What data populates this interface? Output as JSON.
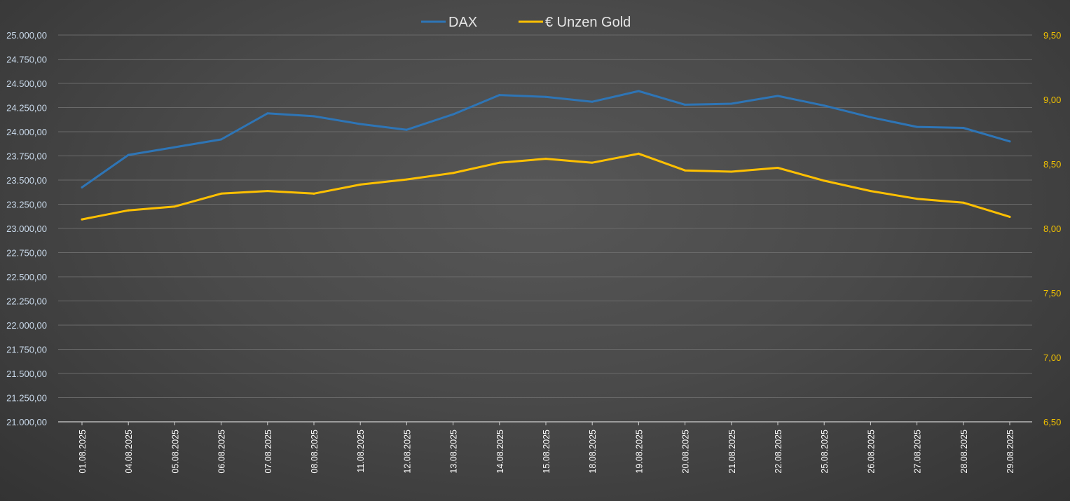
{
  "chart_data": {
    "type": "line",
    "categories": [
      "01.08.2025",
      "04.08.2025",
      "05.08.2025",
      "06.08.2025",
      "07.08.2025",
      "08.08.2025",
      "11.08.2025",
      "12.08.2025",
      "13.08.2025",
      "14.08.2025",
      "15.08.2025",
      "18.08.2025",
      "19.08.2025",
      "20.08.2025",
      "21.08.2025",
      "22.08.2025",
      "25.08.2025",
      "26.08.2025",
      "27.08.2025",
      "28.08.2025",
      "29.08.2025"
    ],
    "series": [
      {
        "name": "DAX",
        "axis": "left",
        "color": "#2e75b6",
        "values": [
          23425,
          23760,
          23840,
          23920,
          24190,
          24160,
          24080,
          24020,
          24180,
          24380,
          24360,
          24310,
          24420,
          24280,
          24290,
          24370,
          24270,
          24150,
          24050,
          24040,
          23900
        ]
      },
      {
        "name": "€ Unzen Gold",
        "axis": "right",
        "color": "#ffc000",
        "values": [
          8.07,
          8.14,
          8.17,
          8.27,
          8.29,
          8.27,
          8.34,
          8.38,
          8.43,
          8.51,
          8.54,
          8.51,
          8.58,
          8.45,
          8.44,
          8.47,
          8.37,
          8.29,
          8.23,
          8.2,
          8.09
        ]
      }
    ],
    "y_left": {
      "range": [
        21000,
        25000
      ],
      "ticks": [
        "21.000,00",
        "21.250,00",
        "21.500,00",
        "21.750,00",
        "22.000,00",
        "22.250,00",
        "22.500,00",
        "22.750,00",
        "23.000,00",
        "23.250,00",
        "23.500,00",
        "23.750,00",
        "24.000,00",
        "24.250,00",
        "24.500,00",
        "24.750,00",
        "25.000,00"
      ],
      "tick_color": "#c9d9ea"
    },
    "y_right": {
      "range": [
        6.5,
        9.5
      ],
      "ticks": [
        "6,50",
        "7,00",
        "7,50",
        "8,00",
        "8,50",
        "9,00",
        "9,50"
      ],
      "tick_color": "#f2c200"
    },
    "grid": true,
    "legend": "top-center"
  }
}
